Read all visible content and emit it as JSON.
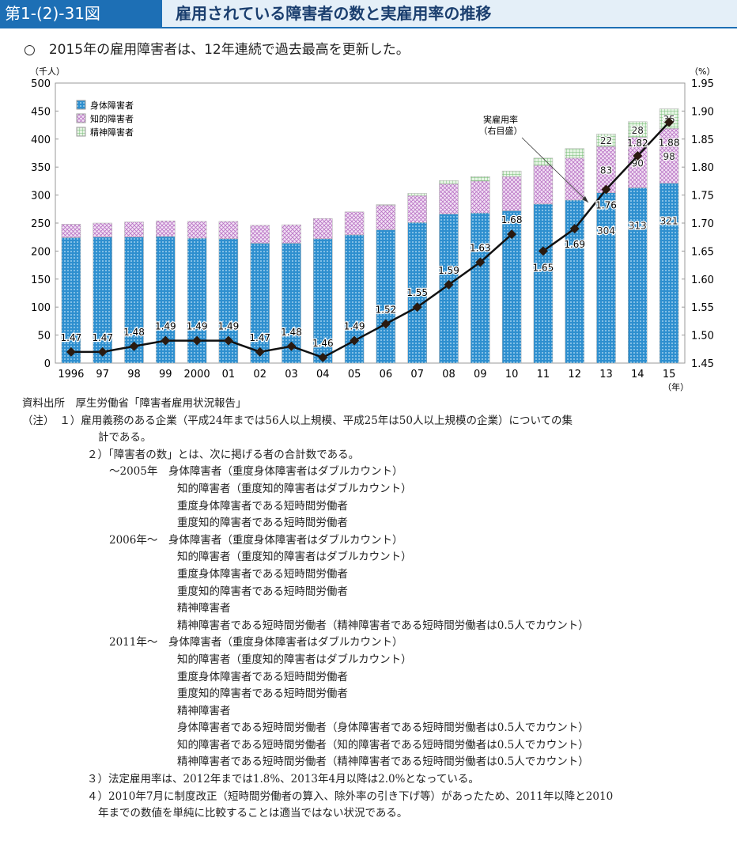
{
  "header": {
    "figure_no": "第1-(2)-31図",
    "title": "雇用されている障害者の数と実雇用率の推移"
  },
  "summary": "○　2015年の雇用障害者は、12年連続で過去最高を更新した。",
  "chart_data": {
    "type": "bar",
    "stacked": true,
    "categories": [
      "1996",
      "97",
      "98",
      "99",
      "2000",
      "01",
      "02",
      "03",
      "04",
      "05",
      "06",
      "07",
      "08",
      "09",
      "10",
      "11",
      "12",
      "13",
      "14",
      "15"
    ],
    "x_unit": "（年）",
    "y_left": {
      "label": "（千人）",
      "range": [
        0,
        500
      ],
      "ticks": [
        0,
        50,
        100,
        150,
        200,
        250,
        300,
        350,
        400,
        450,
        500
      ]
    },
    "y_right": {
      "label": "（%）",
      "range": [
        1.45,
        1.95
      ],
      "ticks": [
        "1.45",
        "1.50",
        "1.55",
        "1.60",
        "1.65",
        "1.70",
        "1.75",
        "1.80",
        "1.85",
        "1.90",
        "1.95"
      ]
    },
    "series": [
      {
        "name": "身体障害者",
        "color": "#2e8fcf",
        "values": [
          224,
          225,
          225,
          226,
          223,
          222,
          214,
          214,
          222,
          229,
          238,
          251,
          266,
          268,
          272,
          284,
          291,
          304,
          313,
          321
        ],
        "labels": [
          null,
          null,
          null,
          null,
          null,
          null,
          null,
          null,
          null,
          null,
          null,
          null,
          null,
          null,
          null,
          null,
          null,
          "304",
          "313",
          "321"
        ]
      },
      {
        "name": "知的障害者",
        "color": "#c68ad0",
        "values": [
          24,
          25,
          27,
          28,
          30,
          31,
          32,
          33,
          36,
          41,
          44,
          48,
          54,
          57,
          61,
          69,
          75,
          83,
          90,
          98
        ],
        "labels": [
          null,
          null,
          null,
          null,
          null,
          null,
          null,
          null,
          null,
          null,
          null,
          null,
          null,
          null,
          null,
          null,
          null,
          "83",
          "90",
          "98"
        ]
      },
      {
        "name": "精神障害者",
        "color": "#7fc27f",
        "values": [
          0,
          0,
          0,
          0,
          0,
          0,
          0,
          0,
          0,
          0,
          1,
          4,
          6,
          8,
          10,
          13,
          17,
          22,
          28,
          35
        ],
        "labels": [
          null,
          null,
          null,
          null,
          null,
          null,
          null,
          null,
          null,
          null,
          null,
          null,
          null,
          null,
          null,
          null,
          null,
          "22",
          "28",
          "35"
        ]
      }
    ],
    "line": {
      "name": "実雇用率",
      "annotation": [
        "実雇用率",
        "（右目盛）"
      ],
      "values": [
        1.47,
        1.47,
        1.48,
        1.49,
        1.49,
        1.49,
        1.47,
        1.48,
        1.46,
        1.49,
        1.52,
        1.55,
        1.59,
        1.63,
        1.68,
        1.65,
        1.69,
        1.76,
        1.82,
        1.88
      ],
      "labels": [
        "1.47",
        "1.47",
        "1.48",
        "1.49",
        "1.49",
        "1.49",
        "1.47",
        "1.48",
        "1.46",
        "1.49",
        "1.52",
        "1.55",
        "1.59",
        "1.63",
        "1.68",
        "1.65",
        "1.69",
        "1.76",
        "1.82",
        "1.88"
      ],
      "break_after": "10"
    }
  },
  "notes": [
    "資料出所　厚生労働省「障害者雇用状況報告」",
    "（注）　１）雇用義務のある企業（平成24年までは56人以上規模、平成25年は50人以上規模の企業）についての集",
    "計である。",
    "２）「障害者の数」とは、次に掲げる者の合計数である。",
    "～2005年　身体障害者（重度身体障害者はダブルカウント）",
    "知的障害者（重度知的障害者はダブルカウント）",
    "重度身体障害者である短時間労働者",
    "重度知的障害者である短時間労働者",
    "2006年～　身体障害者（重度身体障害者はダブルカウント）",
    "知的障害者（重度知的障害者はダブルカウント）",
    "重度身体障害者である短時間労働者",
    "重度知的障害者である短時間労働者",
    "精神障害者",
    "精神障害者である短時間労働者（精神障害者である短時間労働者は0.5人でカウント）",
    "2011年～　身体障害者（重度身体障害者はダブルカウント）",
    "知的障害者（重度知的障害者はダブルカウント）",
    "重度身体障害者である短時間労働者",
    "重度知的障害者である短時間労働者",
    "精神障害者",
    "身体障害者である短時間労働者（身体障害者である短時間労働者は0.5人でカウント）",
    "知的障害者である短時間労働者（知的障害者である短時間労働者は0.5人でカウント）",
    "精神障害者である短時間労働者（精神障害者である短時間労働者は0.5人でカウント）",
    "３）法定雇用率は、2012年までは1.8%、2013年4月以降は2.0%となっている。",
    "４）2010年7月に制度改正（短時間労働者の算入、除外率の引き下げ等）があったため、2011年以降と2010",
    "年までの数値を単純に比較することは適当ではない状況である。"
  ]
}
